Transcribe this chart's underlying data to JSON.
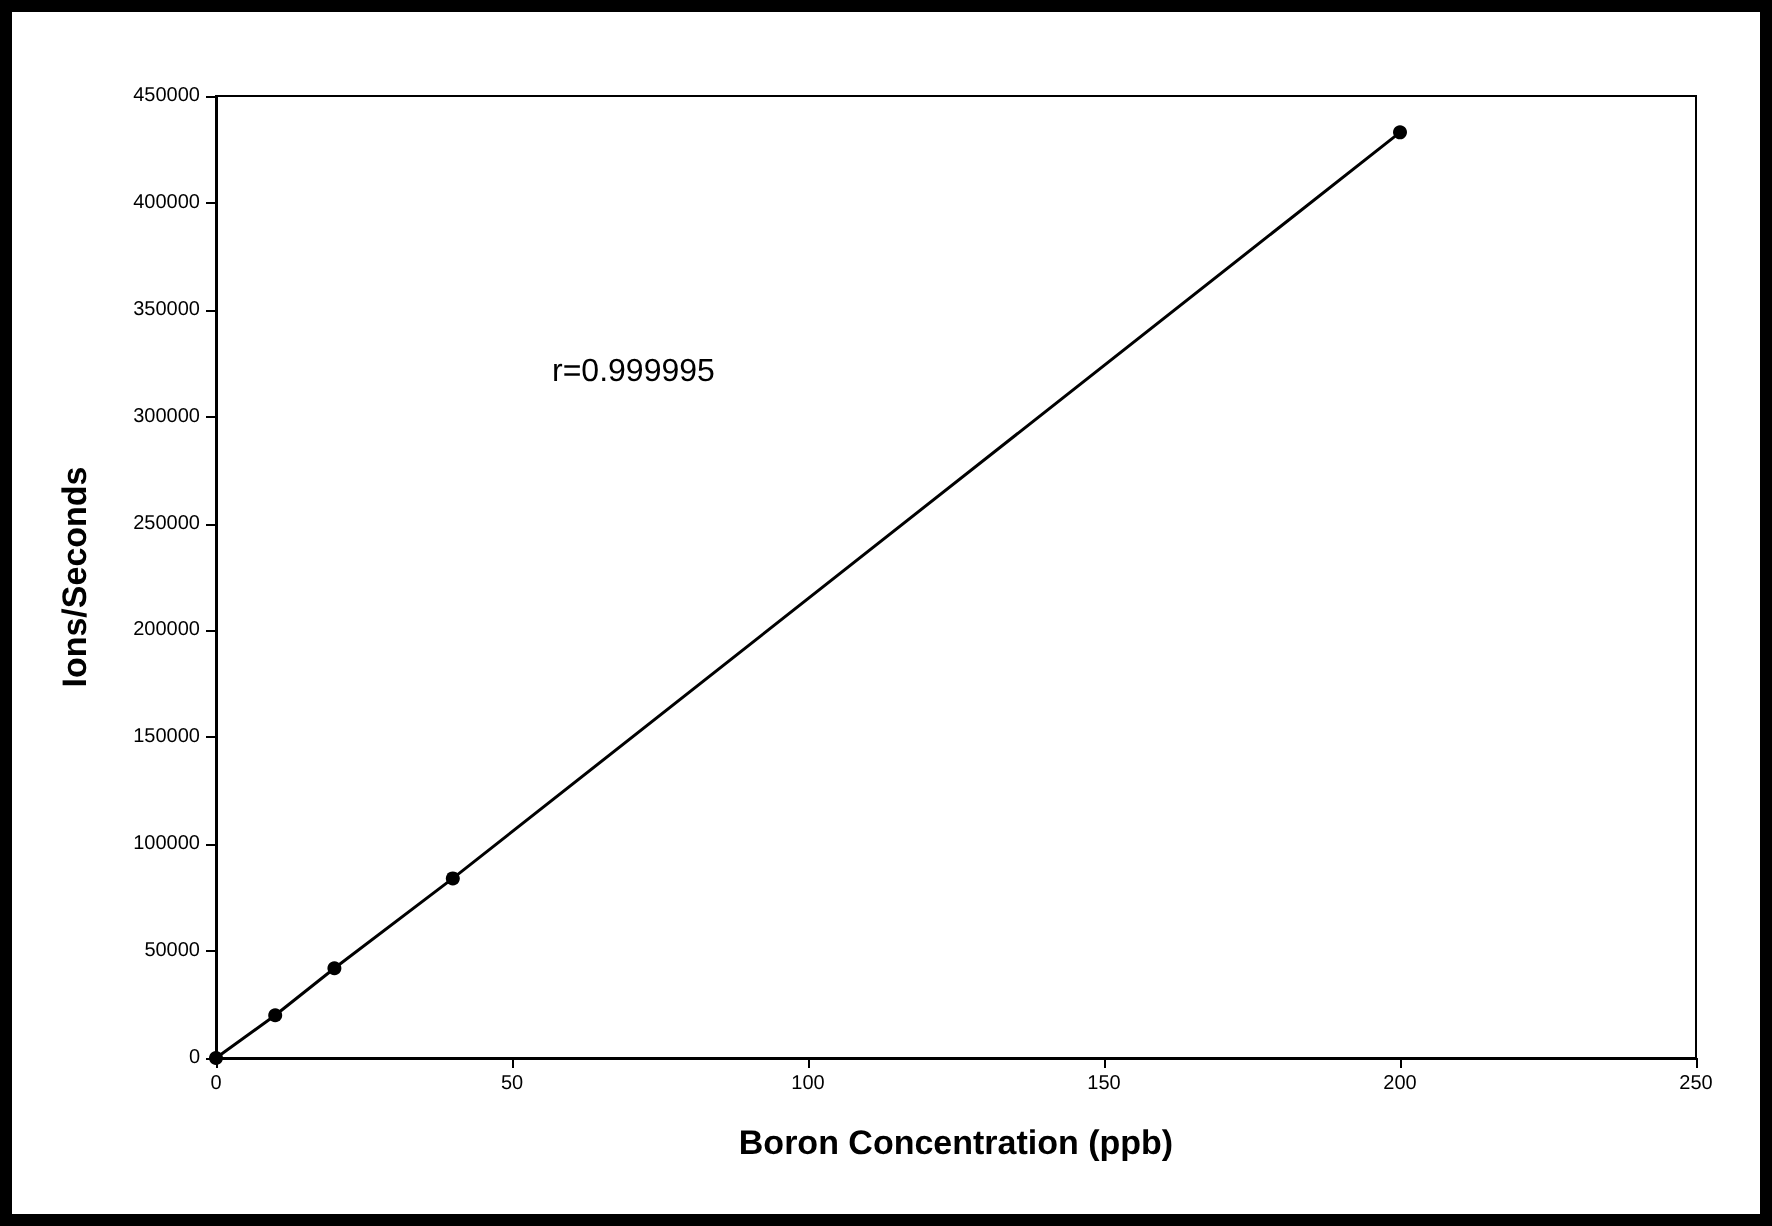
{
  "chart_data": {
    "type": "line",
    "xlabel": "Boron Concentration (ppb)",
    "ylabel": "Ions/Seconds",
    "annotations": [
      "r=0.999995"
    ],
    "x": [
      0,
      10,
      20,
      40,
      200
    ],
    "series": [
      {
        "color": "#000000",
        "values": [
          0,
          20000,
          42000,
          84000,
          433000
        ]
      }
    ],
    "xlim": [
      0,
      250
    ],
    "xticks": [
      0,
      50,
      100,
      150,
      200,
      250
    ],
    "ylim": [
      0,
      450000
    ],
    "yticks": [
      0,
      50000,
      100000,
      150000,
      200000,
      250000,
      300000,
      350000,
      400000,
      450000
    ],
    "grid": false,
    "marker": "circle",
    "line_style": "solid"
  }
}
